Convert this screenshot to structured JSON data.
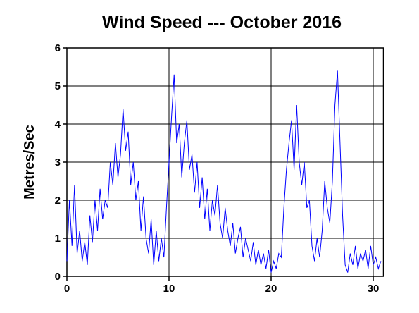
{
  "chart_data": {
    "type": "line",
    "title": "Wind Speed --- October 2016",
    "ylabel": "Metres/Sec",
    "xlim": [
      0,
      31
    ],
    "xticks": [
      0,
      10,
      20,
      30
    ],
    "ylim": [
      0,
      6
    ],
    "yticks": [
      0,
      1,
      2,
      3,
      4,
      5,
      6
    ],
    "grid": true,
    "series": [
      {
        "name": "Wind Speed",
        "color": "#0000ff",
        "x": [
          0,
          0.25,
          0.5,
          0.75,
          1,
          1.25,
          1.5,
          1.75,
          2,
          2.25,
          2.5,
          2.75,
          3,
          3.25,
          3.5,
          3.75,
          4,
          4.25,
          4.5,
          4.75,
          5,
          5.25,
          5.5,
          5.75,
          6,
          6.25,
          6.5,
          6.75,
          7,
          7.25,
          7.5,
          7.75,
          8,
          8.25,
          8.5,
          8.75,
          9,
          9.25,
          9.5,
          9.75,
          10,
          10.25,
          10.5,
          10.75,
          11,
          11.25,
          11.5,
          11.75,
          12,
          12.25,
          12.5,
          12.75,
          13,
          13.25,
          13.5,
          13.75,
          14,
          14.25,
          14.5,
          14.75,
          15,
          15.25,
          15.5,
          15.75,
          16,
          16.25,
          16.5,
          16.75,
          17,
          17.25,
          17.5,
          17.75,
          18,
          18.25,
          18.5,
          18.75,
          19,
          19.25,
          19.5,
          19.75,
          20,
          20.25,
          20.5,
          20.75,
          21,
          21.25,
          21.5,
          21.75,
          22,
          22.25,
          22.5,
          22.75,
          23,
          23.25,
          23.5,
          23.75,
          24,
          24.25,
          24.5,
          24.75,
          25,
          25.25,
          25.5,
          25.75,
          26,
          26.25,
          26.5,
          26.75,
          27,
          27.25,
          27.5,
          27.75,
          28,
          28.25,
          28.5,
          28.75,
          29,
          29.25,
          29.5,
          29.75,
          30,
          30.25,
          30.5,
          30.75
        ],
        "values": [
          0.4,
          2.0,
          0.8,
          2.4,
          0.6,
          1.2,
          0.4,
          0.9,
          0.3,
          1.6,
          0.9,
          2.0,
          1.2,
          2.3,
          1.5,
          2.0,
          1.8,
          3.0,
          2.4,
          3.5,
          2.6,
          3.2,
          4.4,
          3.3,
          3.8,
          2.4,
          3.0,
          2.0,
          2.5,
          1.2,
          2.1,
          1.0,
          0.6,
          1.5,
          0.3,
          1.2,
          0.4,
          1.0,
          0.5,
          1.8,
          3.0,
          4.2,
          5.3,
          3.5,
          4.0,
          2.6,
          3.5,
          4.1,
          2.8,
          3.2,
          2.2,
          3.0,
          1.8,
          2.6,
          1.5,
          2.3,
          1.2,
          2.0,
          1.6,
          2.4,
          1.4,
          1.0,
          1.8,
          1.2,
          0.8,
          1.4,
          0.6,
          1.0,
          1.3,
          0.5,
          1.0,
          0.7,
          0.4,
          0.9,
          0.3,
          0.7,
          0.3,
          0.6,
          0.2,
          0.7,
          0.1,
          0.4,
          0.2,
          0.6,
          0.5,
          1.8,
          2.8,
          3.5,
          4.1,
          2.8,
          4.5,
          3.0,
          2.4,
          3.0,
          1.8,
          2.0,
          0.8,
          0.4,
          1.0,
          0.5,
          1.2,
          2.5,
          1.8,
          1.4,
          2.5,
          4.5,
          5.4,
          3.5,
          1.6,
          0.3,
          0.1,
          0.6,
          0.3,
          0.8,
          0.2,
          0.6,
          0.4,
          0.7,
          0.2,
          0.8,
          0.3,
          0.5,
          0.2,
          0.4
        ]
      }
    ]
  }
}
